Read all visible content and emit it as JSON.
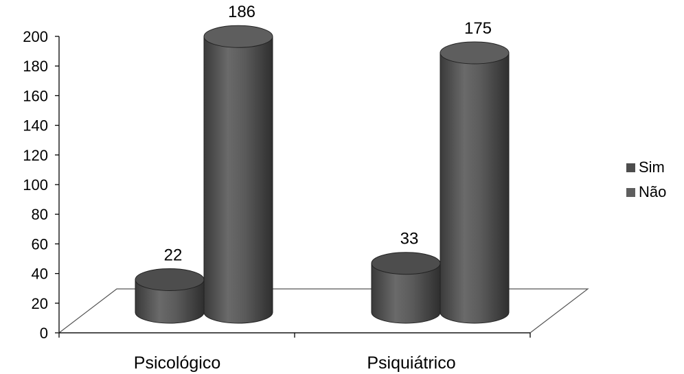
{
  "chart_data": {
    "type": "bar",
    "categories": [
      "Psicológico",
      "Psiquiátrico"
    ],
    "series": [
      {
        "name": "Sim",
        "values": [
          22,
          33
        ],
        "color": "#4d4d4d"
      },
      {
        "name": "Não",
        "values": [
          186,
          175
        ],
        "color": "#5e5e5e"
      }
    ],
    "ylim": [
      0,
      200
    ],
    "yticks": [
      "0",
      "20",
      "40",
      "60",
      "80",
      "100",
      "120",
      "140",
      "160",
      "180",
      "200"
    ],
    "grid": false,
    "legend_position": "right",
    "style": "3d-cylinder"
  },
  "legend": {
    "items": [
      {
        "label": "Sim",
        "color": "#4d4d4d"
      },
      {
        "label": "Não",
        "color": "#5e5e5e"
      }
    ]
  }
}
